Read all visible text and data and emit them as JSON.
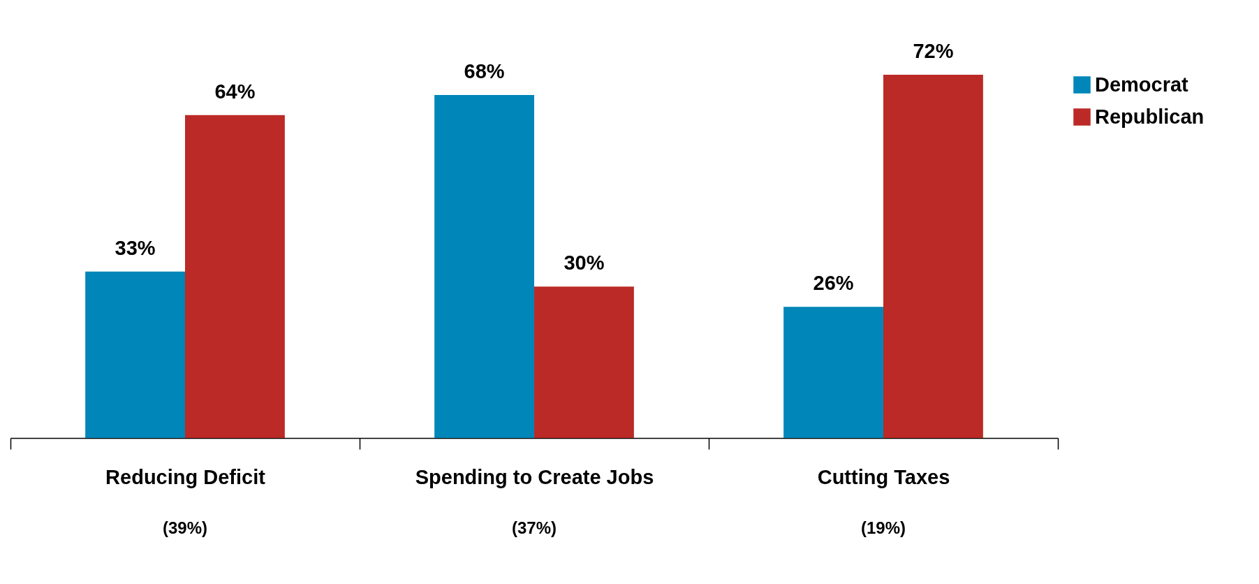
{
  "chart_data": {
    "type": "bar",
    "categories": [
      "Reducing Deficit",
      "Spending to Create Jobs",
      "Cutting Taxes"
    ],
    "series": [
      {
        "name": "Democrat",
        "color": "#0086b8",
        "values": [
          33,
          68,
          26
        ],
        "value_labels": [
          "33%",
          "68%",
          "26%"
        ]
      },
      {
        "name": "Republican",
        "color": "#bb2a26",
        "values": [
          64,
          30,
          72
        ],
        "value_labels": [
          "64%",
          "30%",
          "72%"
        ]
      }
    ],
    "annotations": [
      "(39%)",
      "(37%)",
      "(19%)"
    ],
    "legend": "right",
    "grid": false
  }
}
